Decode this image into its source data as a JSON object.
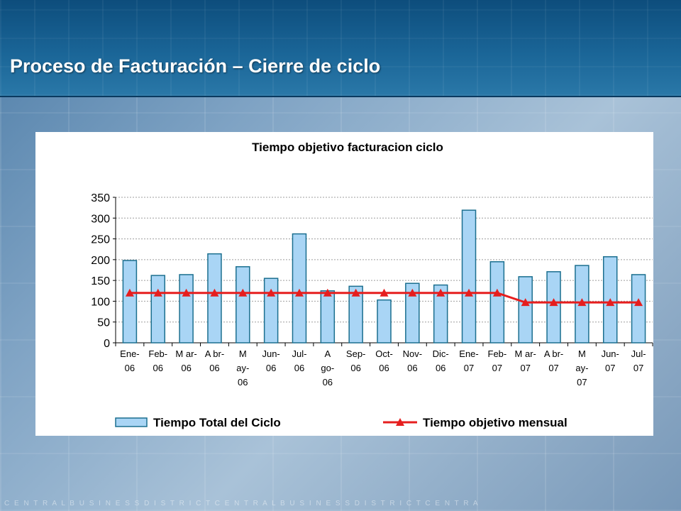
{
  "slide": {
    "title": "Proceso de Facturación – Cierre de ciclo",
    "footer_text": "C E N T R A L B U S I N E S S D I S T R I C T C E N T R A L B U S I N E S S D I S T R I C T C E N T R A"
  },
  "colors": {
    "bar_fill": "#a9d5f5",
    "bar_stroke": "#1b6f8f",
    "target_line": "#e61e1e",
    "gridline": "#9e9e9e"
  },
  "chart_data": {
    "type": "bar",
    "title": "Tiempo objetivo facturacion ciclo",
    "xlabel": "",
    "ylabel": "",
    "ylim": [
      0,
      350
    ],
    "yticks": [
      0,
      50,
      100,
      150,
      200,
      250,
      300,
      350
    ],
    "grid": true,
    "legend_position": "bottom",
    "categories": [
      [
        "Ene-",
        "06"
      ],
      [
        "Feb-",
        "06"
      ],
      [
        "M ar-",
        "06"
      ],
      [
        "A br-",
        "06"
      ],
      [
        "M",
        "ay-",
        "06"
      ],
      [
        "Jun-",
        "06"
      ],
      [
        "Jul-",
        "06"
      ],
      [
        "A",
        "go-",
        "06"
      ],
      [
        "Sep-",
        "06"
      ],
      [
        "Oct-",
        "06"
      ],
      [
        "Nov-",
        "06"
      ],
      [
        "Dic-",
        "06"
      ],
      [
        "Ene-",
        "07"
      ],
      [
        "Feb-",
        "07"
      ],
      [
        "M ar-",
        "07"
      ],
      [
        "A br-",
        "07"
      ],
      [
        "M",
        "ay-",
        "07"
      ],
      [
        "Jun-",
        "07"
      ],
      [
        "Jul-",
        "07"
      ]
    ],
    "series": [
      {
        "name": "Tiempo Total del Ciclo",
        "type": "bar",
        "values": [
          198,
          162,
          164,
          214,
          183,
          155,
          262,
          125,
          136,
          103,
          143,
          139,
          319,
          195,
          159,
          171,
          186,
          207,
          164
        ]
      },
      {
        "name": "Tiempo objetivo mensual",
        "type": "line",
        "marker": "triangle",
        "values": [
          120,
          120,
          120,
          120,
          120,
          120,
          120,
          120,
          120,
          120,
          120,
          120,
          120,
          120,
          97,
          97,
          97,
          97,
          97
        ]
      }
    ]
  }
}
